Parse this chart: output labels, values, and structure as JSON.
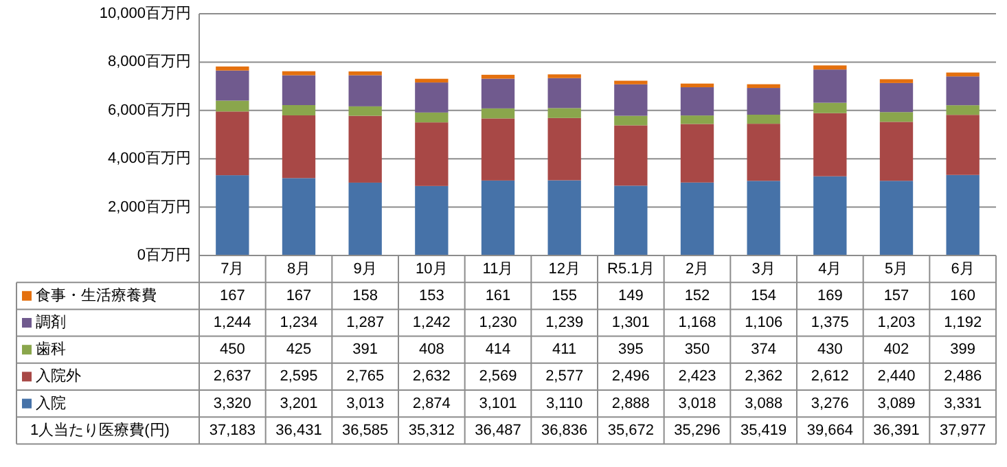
{
  "chart_data": {
    "type": "bar",
    "stacked": true,
    "grid": "y",
    "legend": "bottom",
    "categories": [
      "7月",
      "8月",
      "9月",
      "10月",
      "11月",
      "12月",
      "R5.1月",
      "2月",
      "3月",
      "4月",
      "5月",
      "6月"
    ],
    "ylim": [
      0,
      10000
    ],
    "yticks": [
      {
        "value": 0,
        "label": "0百万円"
      },
      {
        "value": 2000,
        "label": "2,000百万円"
      },
      {
        "value": 4000,
        "label": "4,000百万円"
      },
      {
        "value": 6000,
        "label": "6,000百万円"
      },
      {
        "value": 8000,
        "label": "8,000百万円"
      },
      {
        "value": 10000,
        "label": "10,000百万円"
      }
    ],
    "series": [
      {
        "name": "入院",
        "color": "#4672a8",
        "values": [
          3320,
          3201,
          3013,
          2874,
          3101,
          3110,
          2888,
          3018,
          3088,
          3276,
          3089,
          3331
        ],
        "value_labels": [
          "3,320",
          "3,201",
          "3,013",
          "2,874",
          "3,101",
          "3,110",
          "2,888",
          "3,018",
          "3,088",
          "3,276",
          "3,089",
          "3,331"
        ]
      },
      {
        "name": "入院外",
        "color": "#a84846",
        "values": [
          2637,
          2595,
          2765,
          2632,
          2569,
          2577,
          2496,
          2423,
          2362,
          2612,
          2440,
          2486
        ],
        "value_labels": [
          "2,637",
          "2,595",
          "2,765",
          "2,632",
          "2,569",
          "2,577",
          "2,496",
          "2,423",
          "2,362",
          "2,612",
          "2,440",
          "2,486"
        ]
      },
      {
        "name": "歯科",
        "color": "#8aa64c",
        "values": [
          450,
          425,
          391,
          408,
          414,
          411,
          395,
          350,
          374,
          430,
          402,
          399
        ],
        "value_labels": [
          "450",
          "425",
          "391",
          "408",
          "414",
          "411",
          "395",
          "350",
          "374",
          "430",
          "402",
          "399"
        ]
      },
      {
        "name": "調剤",
        "color": "#705a8e",
        "values": [
          1244,
          1234,
          1287,
          1242,
          1230,
          1239,
          1301,
          1168,
          1106,
          1375,
          1203,
          1192
        ],
        "value_labels": [
          "1,244",
          "1,234",
          "1,287",
          "1,242",
          "1,230",
          "1,239",
          "1,301",
          "1,168",
          "1,106",
          "1,375",
          "1,203",
          "1,192"
        ]
      },
      {
        "name": "食事・生活療養費",
        "color": "#e4700e",
        "values": [
          167,
          167,
          158,
          153,
          161,
          155,
          149,
          152,
          154,
          169,
          157,
          160
        ],
        "value_labels": [
          "167",
          "167",
          "158",
          "153",
          "161",
          "155",
          "149",
          "152",
          "154",
          "169",
          "157",
          "160"
        ]
      }
    ],
    "annotations": [
      "1人当たり医療費(円)",
      "37,183",
      "36,431",
      "36,585",
      "35,312",
      "36,487",
      "36,836",
      "35,672",
      "35,296",
      "35,419",
      "39,664",
      "36,391",
      "37,977"
    ]
  }
}
